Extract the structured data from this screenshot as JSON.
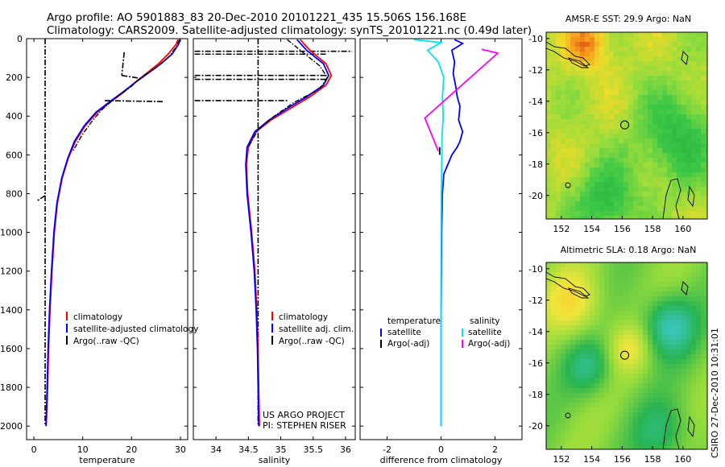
{
  "header": {
    "line1": "Argo profile: AO 5901883_83 20-Dec-2010 20101221_435 15.506S 156.168E",
    "line2": "Climatology: CARS2009. Satellite-adjusted climatology: synTS_20101221.nc (0.49d later)"
  },
  "credit": {
    "line1": "US ARGO PROJECT",
    "line2": "PI: STEPHEN RISER"
  },
  "stamp": "CSIRO 27-Dec-2010 10:31:01",
  "colors": {
    "clim": "#ff0000",
    "sat": "#0000ff",
    "argo": "#000000",
    "sat_s": "#00e5ee",
    "argo_s": "#ff00ff"
  },
  "chart_data": [
    {
      "id": "temperature",
      "type": "line",
      "xlabel": "temperature",
      "ylabel": "",
      "xlim": [
        -1.5,
        31.5
      ],
      "ylim": [
        2070,
        0
      ],
      "xticks": [
        0,
        10,
        20,
        30
      ],
      "yticks": [
        0,
        200,
        400,
        600,
        800,
        1000,
        1200,
        1400,
        1600,
        1800,
        2000
      ],
      "legend": [
        "climatology",
        "satellite-adjusted climatology",
        "Argo(..raw -QC)"
      ],
      "series": [
        {
          "name": "climatology",
          "color": "red",
          "x": [
            29.5,
            29.1,
            27.5,
            25.5,
            23.0,
            20.5,
            18.2,
            15.5,
            13.0,
            10.5,
            8.5,
            7.0,
            5.8,
            4.8,
            4.2,
            3.7,
            3.3,
            3.0,
            2.8,
            2.6,
            2.5
          ],
          "y": [
            5,
            30,
            80,
            130,
            180,
            230,
            280,
            330,
            380,
            450,
            530,
            620,
            720,
            850,
            1000,
            1200,
            1400,
            1600,
            1800,
            1950,
            2000
          ]
        },
        {
          "name": "satellite-adjusted climatology",
          "color": "blue",
          "x": [
            30.0,
            29.6,
            28.3,
            26.0,
            23.3,
            20.6,
            18.0,
            15.3,
            12.7,
            10.3,
            8.3,
            6.9,
            5.7,
            4.7,
            4.1,
            3.6,
            3.2,
            2.9,
            2.7,
            2.55,
            2.5
          ],
          "y": [
            5,
            30,
            80,
            130,
            180,
            230,
            280,
            330,
            380,
            450,
            530,
            620,
            720,
            850,
            1000,
            1200,
            1400,
            1600,
            1800,
            1950,
            2000
          ]
        },
        {
          "name": "Argo(..raw -QC)",
          "color": "black",
          "dashed": true,
          "x": [
            29.8,
            29.2,
            27.8,
            25.0,
            22.0,
            19.8,
            16.5,
            13.8,
            11.8,
            9.8,
            8.0
          ],
          "y": [
            5,
            40,
            90,
            150,
            200,
            250,
            310,
            370,
            430,
            500,
            580
          ]
        }
      ],
      "qc_flags": {
        "vertical": {
          "x": 2.3,
          "y_from": 0,
          "y_to": 2000
        },
        "spikes": [
          {
            "x_from": 18.5,
            "x_to": 18.0,
            "y_from": 70,
            "y_to": 190
          },
          {
            "x_from": 18.0,
            "x_to": 21.8,
            "y_from": 190,
            "y_to": 205
          },
          {
            "x_from": 14.5,
            "x_to": 26.5,
            "y_from": 320,
            "y_to": 325
          },
          {
            "x_from": 2.3,
            "x_to": 0.5,
            "y_from": 810,
            "y_to": 840
          }
        ]
      }
    },
    {
      "id": "salinity",
      "type": "line",
      "xlabel": "salinity",
      "ylabel": "",
      "xlim": [
        33.65,
        36.15
      ],
      "ylim": [
        2070,
        0
      ],
      "xticks": [
        34,
        34.5,
        35,
        35.5,
        36
      ],
      "legend": [
        "climatology",
        "satellite adj. clim.",
        "Argo(..raw -QC)"
      ],
      "series": [
        {
          "name": "climatology",
          "color": "red",
          "x": [
            35.3,
            35.45,
            35.7,
            35.78,
            35.7,
            35.45,
            35.15,
            34.85,
            34.62,
            34.5,
            34.47,
            34.49,
            34.55,
            34.6,
            34.63,
            34.65,
            34.66,
            34.67
          ],
          "y": [
            5,
            60,
            130,
            190,
            240,
            300,
            360,
            420,
            480,
            560,
            650,
            800,
            1000,
            1200,
            1400,
            1600,
            1800,
            2000
          ]
        },
        {
          "name": "satellite adj. clim.",
          "color": "blue",
          "x": [
            35.25,
            35.4,
            35.66,
            35.74,
            35.66,
            35.4,
            35.1,
            34.82,
            34.6,
            34.48,
            34.46,
            34.48,
            34.54,
            34.59,
            34.62,
            34.64,
            34.65,
            34.66
          ],
          "y": [
            5,
            60,
            130,
            190,
            240,
            300,
            360,
            420,
            480,
            560,
            650,
            800,
            1000,
            1200,
            1400,
            1600,
            1800,
            2000
          ]
        },
        {
          "name": "Argo(..raw -QC)",
          "color": "black",
          "dashed": true,
          "x": [
            35.1,
            35.3,
            35.6,
            35.72,
            35.6,
            35.2,
            34.9,
            34.65,
            34.5
          ],
          "y": [
            5,
            60,
            140,
            200,
            260,
            330,
            400,
            470,
            560
          ]
        }
      ],
      "qc_flags": {
        "vertical": {
          "x": 34.65,
          "y_from": 0,
          "y_to": 2000
        },
        "horizontal": [
          {
            "x_from": 33.67,
            "x_to": 36.1,
            "y": 65
          },
          {
            "x_from": 33.67,
            "x_to": 35.7,
            "y": 80
          },
          {
            "x_from": 33.67,
            "x_to": 35.7,
            "y": 190
          },
          {
            "x_from": 33.67,
            "x_to": 35.7,
            "y": 210
          },
          {
            "x_from": 33.67,
            "x_to": 35.1,
            "y": 320
          }
        ]
      }
    },
    {
      "id": "difference",
      "type": "line",
      "xlabel": "difference from climatology",
      "ylabel": "",
      "xlim": [
        -3.0,
        3.0
      ],
      "ylim": [
        2070,
        0
      ],
      "xticks": [
        -2,
        0,
        2
      ],
      "legend": [
        {
          "group": "temperature",
          "items": [
            "satellite",
            "Argo(-adj)"
          ]
        },
        {
          "group": "salinity",
          "items": [
            "satellite",
            "Argo(-adj)"
          ]
        }
      ],
      "series": [
        {
          "name": "temperature satellite",
          "color": "blue",
          "x": [
            0.5,
            0.8,
            0.4,
            0.5,
            0.45,
            0.55,
            0.6,
            0.7,
            0.65,
            0.8,
            0.7,
            0.6,
            0.4,
            0.25,
            0.1,
            0.05,
            0.02,
            0.0,
            0.0
          ],
          "y": [
            5,
            25,
            60,
            120,
            180,
            250,
            300,
            350,
            420,
            480,
            530,
            560,
            600,
            650,
            700,
            800,
            1000,
            1500,
            2000
          ]
        },
        {
          "name": "salinity satellite",
          "color": "cyan",
          "x": [
            -1.0,
            0.0,
            -0.5,
            -0.1,
            0.1,
            0.05,
            0.08,
            0.04,
            0.03,
            0.02,
            0.01,
            0.0,
            0.0
          ],
          "y": [
            5,
            20,
            60,
            120,
            200,
            300,
            400,
            500,
            600,
            700,
            800,
            1200,
            2000
          ]
        },
        {
          "name": "salinity Argo(-adj)",
          "color": "magenta",
          "x": [
            1.5,
            2.1,
            -0.6,
            -0.1
          ],
          "y": [
            55,
            75,
            410,
            580
          ]
        },
        {
          "name": "temperature Argo(-adj)",
          "color": "black",
          "x": [
            -0.05,
            -0.05
          ],
          "y": [
            560,
            600
          ]
        }
      ]
    },
    {
      "id": "sst_map",
      "type": "heatmap",
      "title": "AMSR-E SST: 29.9 Argo: NaN",
      "xlim": [
        151.0,
        161.6
      ],
      "ylim": [
        -21.5,
        -9.6
      ],
      "xticks": [
        152,
        154,
        156,
        158,
        160
      ],
      "yticks": [
        -10,
        -12,
        -14,
        -16,
        -18,
        -20
      ],
      "marker": {
        "lon": 156.168,
        "lat": -15.506
      }
    },
    {
      "id": "sla_map",
      "type": "heatmap",
      "title": "Altimetric SLA: 0.18 Argo: NaN",
      "xlim": [
        151.0,
        161.6
      ],
      "ylim": [
        -21.5,
        -9.6
      ],
      "xticks": [
        152,
        154,
        156,
        158,
        160
      ],
      "yticks": [
        -10,
        -12,
        -14,
        -16,
        -18,
        -20
      ],
      "marker": {
        "lon": 156.168,
        "lat": -15.506
      }
    }
  ]
}
